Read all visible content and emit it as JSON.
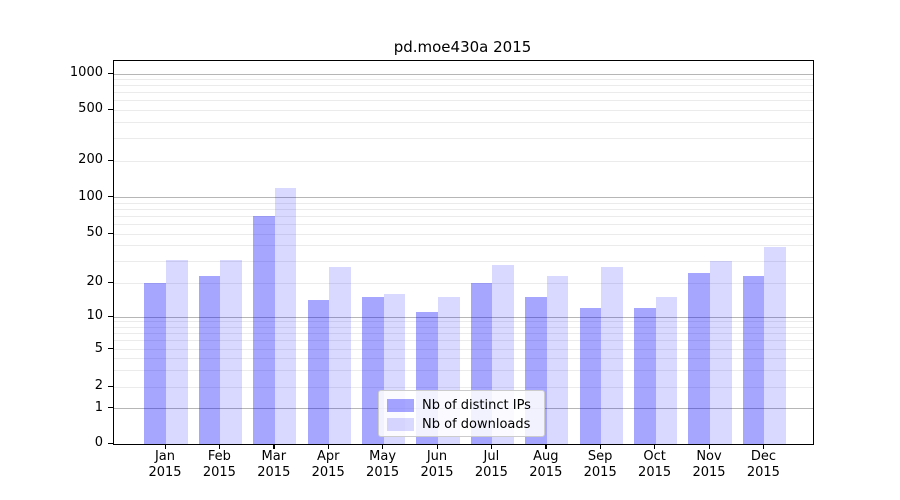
{
  "title": "pd.moe430a 2015",
  "chart_data": {
    "type": "bar",
    "title": "pd.moe430a 2015",
    "categories": [
      "Jan 2015",
      "Feb 2015",
      "Mar 2015",
      "Apr 2015",
      "May 2015",
      "Jun 2015",
      "Jul 2015",
      "Aug 2015",
      "Sep 2015",
      "Oct 2015",
      "Nov 2015",
      "Dec 2015"
    ],
    "series": [
      {
        "name": "Nb of distinct IPs",
        "color": "#0000FF59",
        "values": [
          20,
          23,
          70,
          14,
          15,
          11,
          20,
          15,
          12,
          12,
          24,
          23
        ]
      },
      {
        "name": "Nb of downloads",
        "color": "#0000FF26",
        "values": [
          31,
          31,
          120,
          27,
          16,
          15,
          28,
          23,
          27,
          15,
          30,
          39
        ]
      }
    ],
    "xlabel": "",
    "ylabel": "",
    "yaxis": {
      "scale": "symlog",
      "range": [
        0,
        1000
      ],
      "tick_labels": [
        "0",
        "1",
        "2",
        "5",
        "10",
        "20",
        "50",
        "100",
        "200",
        "500",
        "1000"
      ],
      "tick_values": [
        0,
        1,
        2,
        5,
        10,
        20,
        50,
        100,
        200,
        500,
        1000
      ]
    },
    "grid": "horizontal, major and minor",
    "legend_position": "lower center",
    "colors": {
      "major_grid": "#b6b6b6",
      "minor_grid": "#ebebeb",
      "spine": "#000000",
      "background": "#ffffff"
    }
  },
  "legend": {
    "entries": [
      {
        "label": "Nb of distinct IPs"
      },
      {
        "label": "Nb of downloads"
      }
    ]
  }
}
